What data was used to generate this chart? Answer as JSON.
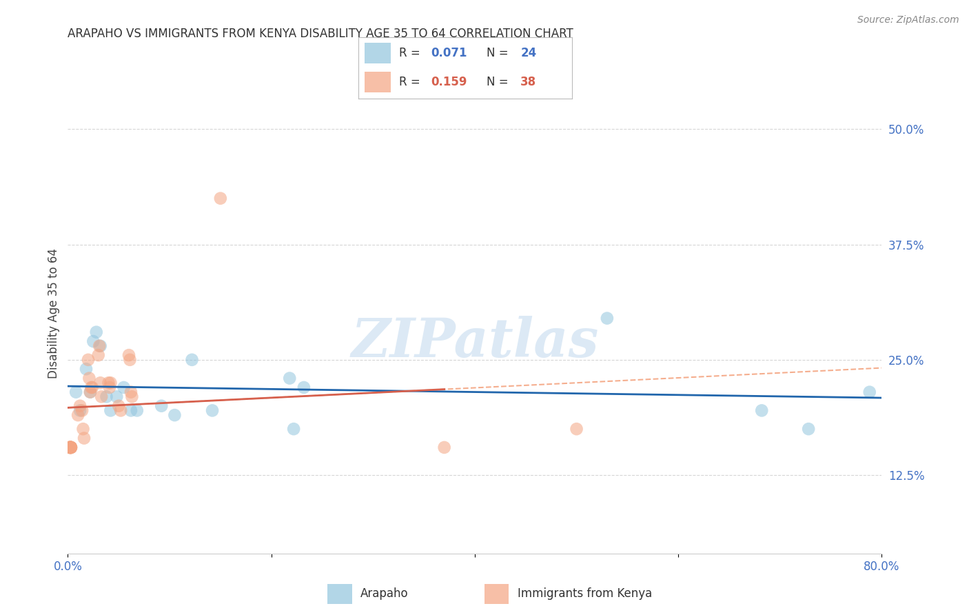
{
  "title": "ARAPAHO VS IMMIGRANTS FROM KENYA DISABILITY AGE 35 TO 64 CORRELATION CHART",
  "source": "Source: ZipAtlas.com",
  "ylabel": "Disability Age 35 to 64",
  "ytick_labels": [
    "12.5%",
    "25.0%",
    "37.5%",
    "50.0%"
  ],
  "ytick_values": [
    0.125,
    0.25,
    0.375,
    0.5
  ],
  "xlim": [
    0.0,
    0.8
  ],
  "ylim": [
    0.04,
    0.56
  ],
  "legend_r_blue": "0.071",
  "legend_n_blue": "24",
  "legend_r_pink": "0.159",
  "legend_n_pink": "38",
  "legend_label_blue": "Arapaho",
  "legend_label_pink": "Immigrants from Kenya",
  "blue_scatter_color": "#92c5de",
  "pink_scatter_color": "#f4a582",
  "blue_line_color": "#2166ac",
  "pink_line_color": "#d6604d",
  "pink_dash_color": "#f4a582",
  "text_color": "#4472c4",
  "watermark_color": "#dce9f5",
  "arapaho_x": [
    0.008,
    0.012,
    0.018,
    0.022,
    0.025,
    0.028,
    0.032,
    0.038,
    0.042,
    0.048,
    0.055,
    0.062,
    0.068,
    0.092,
    0.105,
    0.122,
    0.142,
    0.218,
    0.222,
    0.232,
    0.53,
    0.682,
    0.728,
    0.788
  ],
  "arapaho_y": [
    0.215,
    0.195,
    0.24,
    0.215,
    0.27,
    0.28,
    0.265,
    0.21,
    0.195,
    0.21,
    0.22,
    0.195,
    0.195,
    0.2,
    0.19,
    0.25,
    0.195,
    0.23,
    0.175,
    0.22,
    0.295,
    0.195,
    0.175,
    0.215
  ],
  "kenya_x": [
    0.002,
    0.002,
    0.002,
    0.002,
    0.002,
    0.003,
    0.003,
    0.003,
    0.003,
    0.003,
    0.003,
    0.003,
    0.01,
    0.012,
    0.014,
    0.015,
    0.016,
    0.02,
    0.021,
    0.022,
    0.023,
    0.024,
    0.03,
    0.031,
    0.032,
    0.033,
    0.04,
    0.041,
    0.042,
    0.05,
    0.052,
    0.06,
    0.061,
    0.062,
    0.063,
    0.37,
    0.15,
    0.5
  ],
  "kenya_y": [
    0.155,
    0.155,
    0.155,
    0.155,
    0.155,
    0.155,
    0.155,
    0.155,
    0.155,
    0.155,
    0.155,
    0.155,
    0.19,
    0.2,
    0.195,
    0.175,
    0.165,
    0.25,
    0.23,
    0.215,
    0.22,
    0.22,
    0.255,
    0.265,
    0.225,
    0.21,
    0.225,
    0.22,
    0.225,
    0.2,
    0.195,
    0.255,
    0.25,
    0.215,
    0.21,
    0.155,
    0.425,
    0.175
  ],
  "background_color": "#ffffff",
  "grid_color": "#cccccc"
}
